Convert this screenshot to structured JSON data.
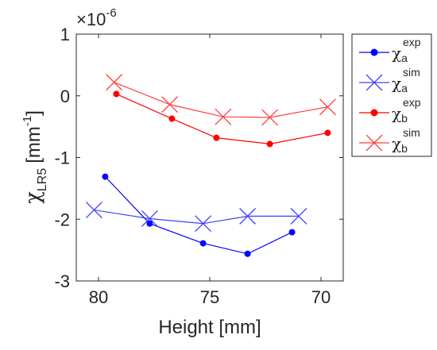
{
  "chart_data": {
    "type": "line",
    "xlabel": "Height [mm]",
    "ylabel": {
      "main": "χ",
      "sub": "LR5",
      "unit": "[mm",
      "unit_sup": "-1",
      "unit_close": "]"
    },
    "exponent_label": {
      "prefix": "×10",
      "power": "-6"
    },
    "xlim": [
      81,
      69
    ],
    "ylim": [
      -3,
      1
    ],
    "x_ticks": [
      {
        "value": 80,
        "label": "80"
      },
      {
        "value": 75,
        "label": "75"
      },
      {
        "value": 70,
        "label": "70"
      }
    ],
    "y_ticks": [
      {
        "value": 1,
        "label": "1"
      },
      {
        "value": 0,
        "label": "0"
      },
      {
        "value": -1,
        "label": "-1"
      },
      {
        "value": -2,
        "label": "-2"
      },
      {
        "value": -3,
        "label": "-3"
      }
    ],
    "grid": false,
    "legend_position": "outside-right",
    "series": [
      {
        "name": {
          "base": "χ",
          "sup": "exp",
          "sub": "a"
        },
        "color": "#0000ff",
        "marker": "dot",
        "x": [
          79.7,
          77.7,
          75.3,
          73.3,
          71.3
        ],
        "y": [
          -1.31,
          -2.07,
          -2.39,
          -2.56,
          -2.21
        ]
      },
      {
        "name": {
          "base": "χ",
          "sup": "sim",
          "sub": "a"
        },
        "color": "#4040ff",
        "marker": "x",
        "x": [
          80.2,
          77.7,
          75.3,
          73.3,
          71.0
        ],
        "y": [
          -1.85,
          -1.99,
          -2.07,
          -1.95,
          -1.95
        ]
      },
      {
        "name": {
          "base": "χ",
          "sup": "exp",
          "sub": "b"
        },
        "color": "#ff0000",
        "marker": "dot",
        "x": [
          79.2,
          76.7,
          74.7,
          72.3,
          69.7
        ],
        "y": [
          0.03,
          -0.37,
          -0.68,
          -0.78,
          -0.6
        ]
      },
      {
        "name": {
          "base": "χ",
          "sup": "sim",
          "sub": "b"
        },
        "color": "#ff4040",
        "marker": "x",
        "x": [
          79.3,
          76.8,
          74.4,
          72.3,
          69.7
        ],
        "y": [
          0.22,
          -0.14,
          -0.34,
          -0.35,
          -0.18
        ]
      }
    ]
  }
}
